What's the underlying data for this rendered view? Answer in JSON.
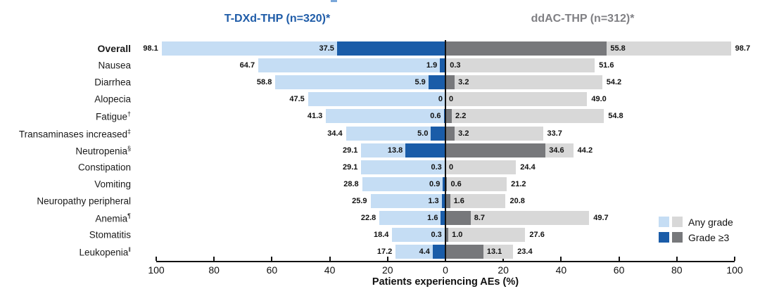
{
  "titles": {
    "left": "T-DXd-THP (n=320)*",
    "right": "ddAC-THP (n=312)*"
  },
  "colors": {
    "light_blue": "#c5ddf4",
    "dark_blue": "#1a5ca8",
    "light_gray": "#d8d8d8",
    "dark_gray": "#77787b",
    "title_blue": "#1f5ca8",
    "title_gray": "#808084",
    "axis_black": "#111111",
    "artifact_blue": "#7aa7d9"
  },
  "legend": {
    "items": [
      {
        "label": "Any grade",
        "blue_swatch": "#c5ddf4",
        "gray_swatch": "#d8d8d8"
      },
      {
        "label": "Grade ≥3",
        "blue_swatch": "#1a5ca8",
        "gray_swatch": "#77787b"
      }
    ]
  },
  "axis": {
    "label": "Patients experiencing AEs (%)",
    "ticks": [
      {
        "text": "100",
        "value": -100
      },
      {
        "text": "80",
        "value": -80
      },
      {
        "text": "60",
        "value": -60
      },
      {
        "text": "40",
        "value": -40
      },
      {
        "text": "20",
        "value": -20
      },
      {
        "text": "0",
        "value": 0
      },
      {
        "text": "20",
        "value": 20
      },
      {
        "text": "40",
        "value": 40
      },
      {
        "text": "60",
        "value": 60
      },
      {
        "text": "80",
        "value": 80
      },
      {
        "text": "100",
        "value": 100
      }
    ]
  },
  "chart_data": {
    "type": "bar",
    "subtype": "mirrored-horizontal-tornado",
    "title": "",
    "left_group": "T-DXd-THP (n=320)*",
    "right_group": "ddAC-THP (n=312)*",
    "xlabel": "Patients experiencing AEs (%)",
    "x_range_each_side": [
      0,
      100
    ],
    "grid": false,
    "legend_entries": [
      "Any grade",
      "Grade ≥3"
    ],
    "legend_position": "bottom-right",
    "series_note": "left side = T-DXd-THP (blues), right side = ddAC-THP (grays); dark overlay anchored at 0 = Grade ≥3, light full bar = Any grade",
    "rows": [
      {
        "label": "Overall",
        "sup": "",
        "bold": true,
        "tdxd_any": "98.1",
        "tdxd_g3": "37.5",
        "ddac_g3": "55.8",
        "ddac_any": "98.7"
      },
      {
        "label": "Nausea",
        "sup": "",
        "bold": false,
        "tdxd_any": "64.7",
        "tdxd_g3": "1.9",
        "ddac_g3": "0.3",
        "ddac_any": "51.6"
      },
      {
        "label": "Diarrhea",
        "sup": "",
        "bold": false,
        "tdxd_any": "58.8",
        "tdxd_g3": "5.9",
        "ddac_g3": "3.2",
        "ddac_any": "54.2"
      },
      {
        "label": "Alopecia",
        "sup": "",
        "bold": false,
        "tdxd_any": "47.5",
        "tdxd_g3": "0",
        "ddac_g3": "0",
        "ddac_any": "49.0"
      },
      {
        "label": "Fatigue",
        "sup": "†",
        "bold": false,
        "tdxd_any": "41.3",
        "tdxd_g3": "0.6",
        "ddac_g3": "2.2",
        "ddac_any": "54.8"
      },
      {
        "label": "Transaminases increased",
        "sup": "‡",
        "bold": false,
        "tdxd_any": "34.4",
        "tdxd_g3": "5.0",
        "ddac_g3": "3.2",
        "ddac_any": "33.7"
      },
      {
        "label": "Neutropenia",
        "sup": "§",
        "bold": false,
        "tdxd_any": "29.1",
        "tdxd_g3": "13.8",
        "ddac_g3": "34.6",
        "ddac_any": "44.2"
      },
      {
        "label": "Constipation",
        "sup": "",
        "bold": false,
        "tdxd_any": "29.1",
        "tdxd_g3": "0.3",
        "ddac_g3": "0",
        "ddac_any": "24.4"
      },
      {
        "label": "Vomiting",
        "sup": "",
        "bold": false,
        "tdxd_any": "28.8",
        "tdxd_g3": "0.9",
        "ddac_g3": "0.6",
        "ddac_any": "21.2"
      },
      {
        "label": "Neuropathy peripheral",
        "sup": "",
        "bold": false,
        "tdxd_any": "25.9",
        "tdxd_g3": "1.3",
        "ddac_g3": "1.6",
        "ddac_any": "20.8"
      },
      {
        "label": "Anemia",
        "sup": "¶",
        "bold": false,
        "tdxd_any": "22.8",
        "tdxd_g3": "1.6",
        "ddac_g3": "8.7",
        "ddac_any": "49.7"
      },
      {
        "label": "Stomatitis",
        "sup": "",
        "bold": false,
        "tdxd_any": "18.4",
        "tdxd_g3": "0.3",
        "ddac_g3": "1.0",
        "ddac_any": "27.6"
      },
      {
        "label": "Leukopenia",
        "sup": "‖",
        "bold": false,
        "tdxd_any": "17.2",
        "tdxd_g3": "4.4",
        "ddac_g3": "13.1",
        "ddac_any": "23.4"
      }
    ]
  }
}
